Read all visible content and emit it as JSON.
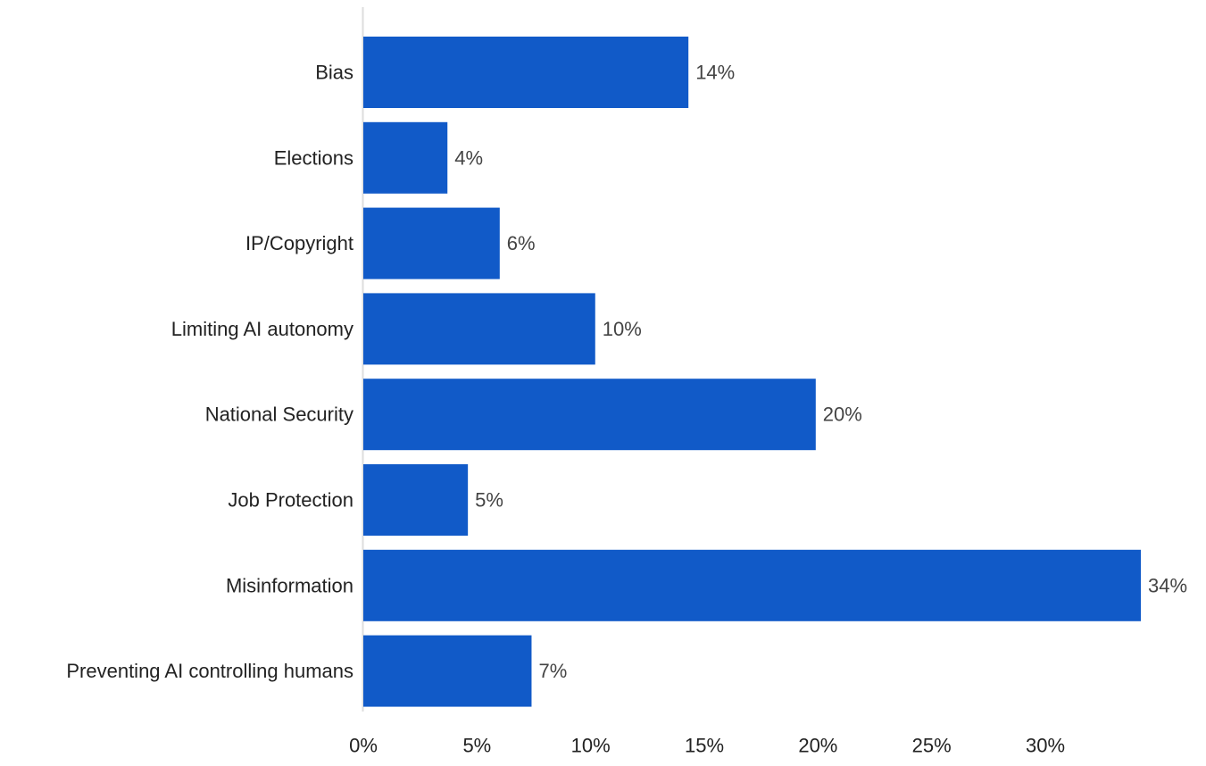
{
  "chart_data": {
    "type": "bar",
    "orientation": "horizontal",
    "categories": [
      "Bias",
      "Elections",
      "IP/Copyright",
      "Limiting AI autonomy",
      "National Security",
      "Job Protection",
      "Misinformation",
      "Preventing AI controlling humans"
    ],
    "values": [
      14.3,
      3.7,
      6.0,
      10.2,
      19.9,
      4.6,
      34.2,
      7.4
    ],
    "value_labels": [
      "14%",
      "4%",
      "6%",
      "10%",
      "20%",
      "5%",
      "34%",
      "7%"
    ],
    "x_ticks": [
      0,
      5,
      10,
      15,
      20,
      25,
      30
    ],
    "x_tick_labels": [
      "0%",
      "5%",
      "10%",
      "15%",
      "20%",
      "25%",
      "30%"
    ],
    "xlim": [
      0,
      34.2
    ],
    "title": "",
    "xlabel": "",
    "ylabel": "",
    "grid": false,
    "bar_color": "#115ac8"
  }
}
